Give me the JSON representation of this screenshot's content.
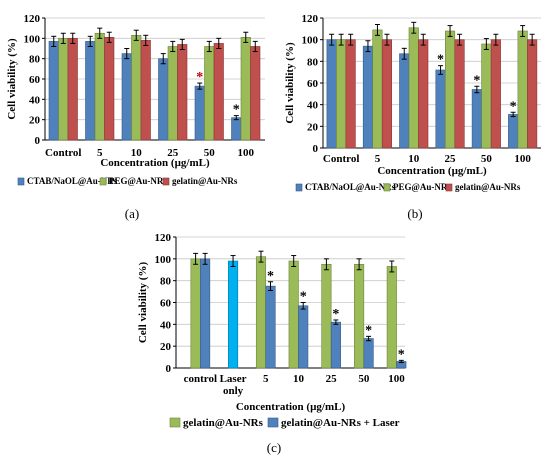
{
  "chart_data": [
    {
      "type": "bar",
      "panel_label": "(a)",
      "categories": [
        "Control",
        "5",
        "10",
        "25",
        "50",
        "100"
      ],
      "series": [
        {
          "name": "CTAB/NaOL@Au-NRs",
          "color": "#4f81bd",
          "values": [
            97,
            97,
            85,
            80,
            53,
            22
          ],
          "errors": [
            5,
            5,
            5,
            5,
            3,
            2
          ],
          "stars": [
            false,
            false,
            false,
            false,
            true,
            true
          ],
          "star_colors": [
            "#000000",
            "#000000",
            "#000000",
            "#000000",
            "#c00000",
            "#000000"
          ]
        },
        {
          "name": "PEG@Au-NRs",
          "color": "#9bbb59",
          "values": [
            100,
            105,
            103,
            92,
            92,
            101
          ],
          "errors": [
            5,
            5,
            5,
            5,
            5,
            5
          ],
          "stars": [
            false,
            false,
            false,
            false,
            false,
            false
          ]
        },
        {
          "name": "gelatin@Au-NRs",
          "color": "#c0504d",
          "values": [
            100,
            101,
            98,
            94,
            95,
            92
          ],
          "errors": [
            5,
            5,
            5,
            5,
            5,
            5
          ],
          "stars": [
            false,
            false,
            false,
            false,
            false,
            false
          ]
        }
      ],
      "ylabel": "Cell viability (%)",
      "xlabel": "Concentration (µg/mL)",
      "yticks": [
        "0",
        "20",
        "40",
        "60",
        "80",
        "100",
        "120"
      ],
      "ylim": [
        0,
        120
      ],
      "legend_position": "bottom"
    },
    {
      "type": "bar",
      "panel_label": "(b)",
      "categories": [
        "Control",
        "5",
        "10",
        "25",
        "50",
        "100"
      ],
      "series": [
        {
          "name": "CTAB/NaOL@Au-NRs",
          "color": "#4f81bd",
          "values": [
            100,
            94,
            87,
            72,
            54,
            31
          ],
          "errors": [
            5,
            5,
            5,
            4,
            3,
            2
          ],
          "stars": [
            false,
            false,
            false,
            true,
            true,
            true
          ],
          "star_colors": [
            "#000000",
            "#000000",
            "#000000",
            "#000000",
            "#000000",
            "#000000"
          ]
        },
        {
          "name": "PEG@Au-NRs",
          "color": "#9bbb59",
          "values": [
            100,
            109,
            111,
            108,
            96,
            108
          ],
          "errors": [
            5,
            5,
            5,
            5,
            5,
            5
          ],
          "stars": [
            false,
            false,
            false,
            false,
            false,
            false
          ]
        },
        {
          "name": "gelatin@Au-NRs",
          "color": "#c0504d",
          "values": [
            100,
            100,
            100,
            100,
            100,
            100
          ],
          "errors": [
            5,
            5,
            5,
            5,
            5,
            5
          ],
          "stars": [
            false,
            false,
            false,
            false,
            false,
            false
          ]
        }
      ],
      "ylabel": "Cell viability (%)",
      "xlabel": "Concentration (µg/mL)",
      "yticks": [
        "0",
        "20",
        "40",
        "60",
        "80",
        "100",
        "120"
      ],
      "ylim": [
        0,
        120
      ],
      "legend_position": "bottom"
    },
    {
      "type": "bar",
      "panel_label": "(c)",
      "categories": [
        "control",
        "Laser only",
        "5",
        "10",
        "25",
        "50",
        "100"
      ],
      "category_lines": [
        [
          "control"
        ],
        [
          "Laser",
          "only"
        ],
        [
          "5"
        ],
        [
          "10"
        ],
        [
          "25"
        ],
        [
          "50"
        ],
        [
          "100"
        ]
      ],
      "series": [
        {
          "name": "gelatin@Au-NRs",
          "color": "#9bbb59",
          "values": [
            100,
            null,
            102,
            98,
            95,
            95,
            93
          ],
          "errors": [
            5,
            null,
            5,
            5,
            5,
            5,
            5
          ],
          "stars": [
            false,
            false,
            false,
            false,
            false,
            false,
            false
          ]
        },
        {
          "name": "gelatin@Au-NRs + Laser",
          "color": "#4f81bd",
          "values": [
            100,
            null,
            75,
            57,
            42,
            27,
            6
          ],
          "errors": [
            5,
            null,
            4,
            3,
            2,
            2,
            1
          ],
          "stars": [
            false,
            false,
            true,
            true,
            true,
            true,
            true
          ],
          "star_colors": [
            "#000000",
            "#000000",
            "#000000",
            "#000000",
            "#000000",
            "#000000",
            "#000000"
          ]
        }
      ],
      "extra_bar": {
        "category_index": 1,
        "value": 98,
        "error": 5,
        "color": "#00b0f0"
      },
      "ylabel": "Cell viability (%)",
      "xlabel": "Concentration (µg/mL)",
      "yticks": [
        "0",
        "20",
        "40",
        "60",
        "80",
        "100",
        "120"
      ],
      "ylim": [
        0,
        120
      ],
      "legend_position": "bottom"
    }
  ]
}
